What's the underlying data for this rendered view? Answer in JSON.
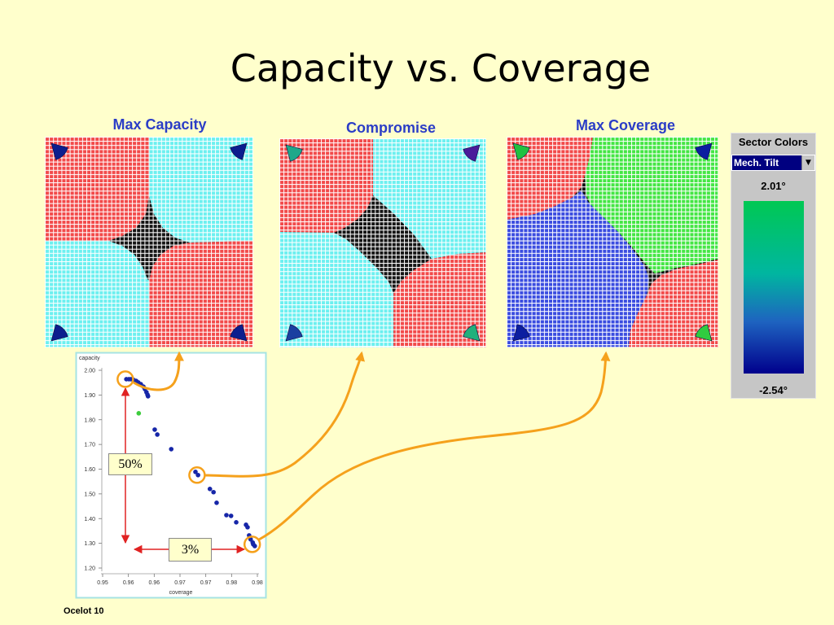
{
  "slide": {
    "title": "Capacity vs. Coverage",
    "footer": "Ocelot 10",
    "background": "#FFFFCC"
  },
  "panels": [
    {
      "label": "Max Capacity",
      "region_colors": [
        "#F24A4A",
        "#6CF0F0",
        "#6CF0F0",
        "#F24A4A"
      ],
      "marker_colors": [
        "#0C1E8E",
        "#0C1E8E",
        "#0C1E8E",
        "#0C1E8E"
      ]
    },
    {
      "label": "Compromise",
      "region_colors": [
        "#F24A4A",
        "#6CF0F0",
        "#6CF0F0",
        "#F24A4A"
      ],
      "marker_colors": [
        "#1FA88A",
        "#4A1C9A",
        "#1B3FA0",
        "#22B07C"
      ]
    },
    {
      "label": "Max Coverage",
      "region_colors": [
        "#F24A4A",
        "#44E644",
        "#3A4CE0",
        "#F24A4A"
      ],
      "marker_colors": [
        "#20C040",
        "#0C1EA0",
        "#0C1EA0",
        "#30CC40"
      ]
    }
  ],
  "grid_colors": {
    "lines": "#FFFFFF",
    "unassigned": "#141414"
  },
  "legend": {
    "title": "Sector Colors",
    "dropdown_value": "Mech. Tilt",
    "max_label": "2.01°",
    "min_label": "-2.54°",
    "gradient": [
      "#00C853",
      "#00B6A0",
      "#1E63C0",
      "#00008C"
    ]
  },
  "annotations": {
    "capacity_gain": "50%",
    "coverage_gain": "3%",
    "connector_color": "#F5A11C",
    "arrow_color": "#E02222"
  },
  "chart_data": {
    "type": "scatter",
    "xlabel": "coverage",
    "ylabel": "capacity",
    "xlim": [
      0.95,
      0.98
    ],
    "ylim": [
      1.2,
      2.0
    ],
    "x_ticks": [
      0.95,
      0.955,
      0.96,
      0.965,
      0.97,
      0.975,
      0.98
    ],
    "x_tick_labels": [
      "0.95",
      "0.96",
      "0.96",
      "0.97",
      "0.97",
      "0.98",
      "0.98"
    ],
    "y_ticks": [
      2.0,
      1.9,
      1.8,
      1.7,
      1.6,
      1.5,
      1.4,
      1.3,
      1.2
    ],
    "y_tick_labels": [
      "2.00",
      "1.90",
      "1.80",
      "1.70",
      "1.60",
      "1.50",
      "1.40",
      "1.30",
      "1.20"
    ],
    "grid": false,
    "series": [
      {
        "color": "#1626A8",
        "points": [
          [
            0.9546,
            1.964
          ],
          [
            0.9551,
            1.964
          ],
          [
            0.9555,
            1.964
          ],
          [
            0.956,
            1.961
          ],
          [
            0.9565,
            1.957
          ],
          [
            0.9569,
            1.951
          ],
          [
            0.9574,
            1.944
          ],
          [
            0.9579,
            1.934
          ],
          [
            0.9582,
            1.924
          ],
          [
            0.9585,
            1.911
          ],
          [
            0.9587,
            1.901
          ],
          [
            0.9588,
            1.895
          ],
          [
            0.9601,
            1.76
          ],
          [
            0.9606,
            1.74
          ],
          [
            0.9633,
            1.681
          ],
          [
            0.968,
            1.589
          ],
          [
            0.9685,
            1.576
          ],
          [
            0.9708,
            1.52
          ],
          [
            0.9715,
            1.507
          ],
          [
            0.9721,
            1.464
          ],
          [
            0.974,
            1.414
          ],
          [
            0.9749,
            1.411
          ],
          [
            0.9759,
            1.385
          ],
          [
            0.9778,
            1.375
          ],
          [
            0.9781,
            1.365
          ],
          [
            0.9784,
            1.332
          ],
          [
            0.9787,
            1.316
          ],
          [
            0.9791,
            1.303
          ],
          [
            0.9792,
            1.296
          ],
          [
            0.9795,
            1.289
          ]
        ]
      },
      {
        "color": "#3DCC3D",
        "points": [
          [
            0.957,
            1.826
          ]
        ]
      }
    ],
    "highlights": [
      [
        0.9544,
        1.964
      ],
      [
        0.9683,
        1.576
      ],
      [
        0.979,
        1.296
      ]
    ]
  }
}
